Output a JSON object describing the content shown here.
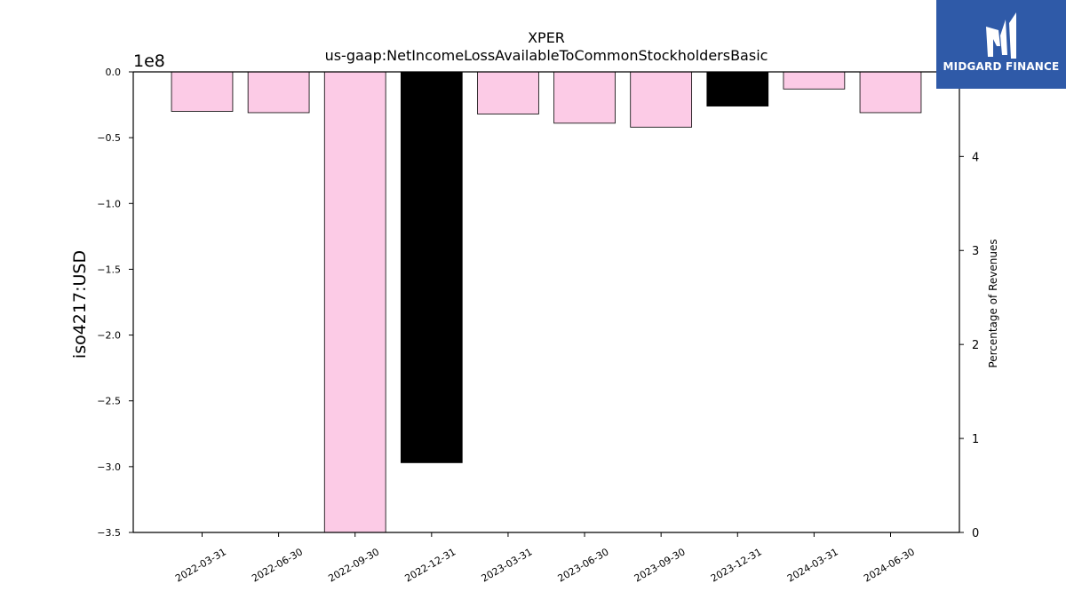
{
  "chart_data": {
    "type": "bar",
    "title": "XPER",
    "subtitle": "us-gaap:NetIncomeLossAvailableToCommonStockholdersBasic",
    "ylabel": "iso4217:USD",
    "y2label": "Percentage of Revenues",
    "offset_text": "1e8",
    "ylim": [
      -3.5,
      0.0
    ],
    "y2lim": [
      0,
      4.9
    ],
    "yticks": [
      "0.0",
      "−0.5",
      "−1.0",
      "−1.5",
      "−2.0",
      "−2.5",
      "−3.0",
      "−3.5"
    ],
    "y2ticks": [
      "0",
      "1",
      "2",
      "3",
      "4"
    ],
    "categories": [
      "2022-03-31",
      "2022-06-30",
      "2022-09-30",
      "2022-12-31",
      "2023-03-31",
      "2023-06-30",
      "2023-09-30",
      "2023-12-31",
      "2024-03-31",
      "2024-06-30"
    ],
    "values": [
      -0.3,
      -0.31,
      -3.5,
      -2.97,
      -0.32,
      -0.39,
      -0.42,
      -0.26,
      -0.13,
      -0.31
    ],
    "colors": [
      "#fccbe6",
      "#fccbe6",
      "#fccbe6",
      "#000000",
      "#fccbe6",
      "#fccbe6",
      "#fccbe6",
      "#000000",
      "#fccbe6",
      "#fccbe6"
    ]
  },
  "logo": {
    "text": "MIDGARD FINANCE",
    "background": "#2f5aa8"
  }
}
